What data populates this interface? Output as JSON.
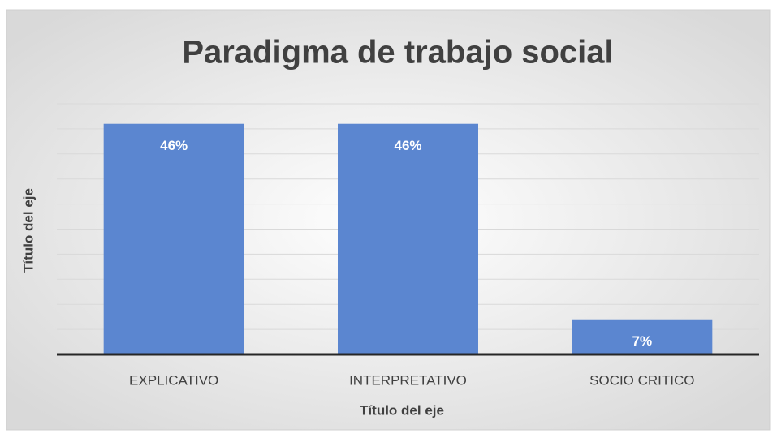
{
  "chart_data": {
    "type": "bar",
    "title": "Paradigma de trabajo social",
    "categories": [
      "EXPLICATIVO",
      "INTERPRETATIVO",
      "SOCIO CRITICO"
    ],
    "values": [
      46,
      46,
      7
    ],
    "value_labels": [
      "46%",
      "46%",
      "7%"
    ],
    "color": "#5b86d0",
    "xlabel": "Título del eje",
    "ylabel": "Título del eje",
    "ylim": [
      0,
      50
    ],
    "yticks": [
      0,
      5,
      10,
      15,
      20,
      25,
      30,
      35,
      40,
      45,
      50
    ],
    "grid": true
  }
}
